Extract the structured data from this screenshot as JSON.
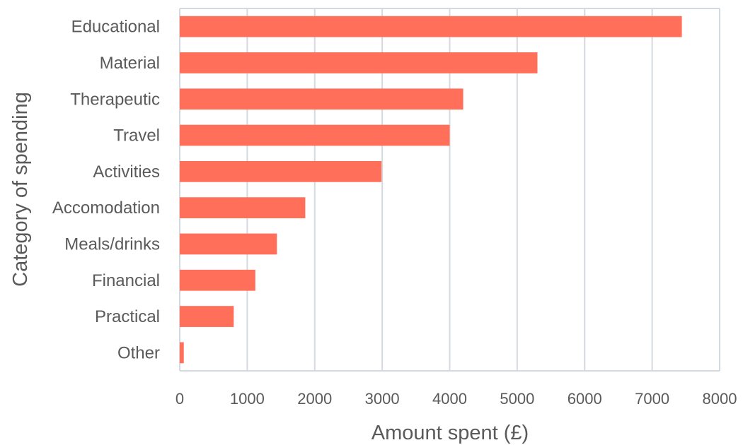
{
  "chart_data": {
    "type": "bar",
    "orientation": "horizontal",
    "title": "",
    "xlabel": "Amount spent (£)",
    "ylabel": "Category of spending",
    "categories": [
      "Educational",
      "Material",
      "Therapeutic",
      "Travel",
      "Activities",
      "Accomodation",
      "Meals/drinks",
      "Financial",
      "Practical",
      "Other"
    ],
    "values": [
      7440,
      5300,
      4200,
      4000,
      2990,
      1860,
      1440,
      1120,
      800,
      60
    ],
    "xlim": [
      0,
      8000
    ],
    "xticks": [
      "0",
      "1000",
      "2000",
      "3000",
      "4000",
      "5000",
      "6000",
      "7000",
      "8000"
    ],
    "grid": true,
    "bar_color": "#ff6f59",
    "grid_color": "#d3d9e0"
  }
}
